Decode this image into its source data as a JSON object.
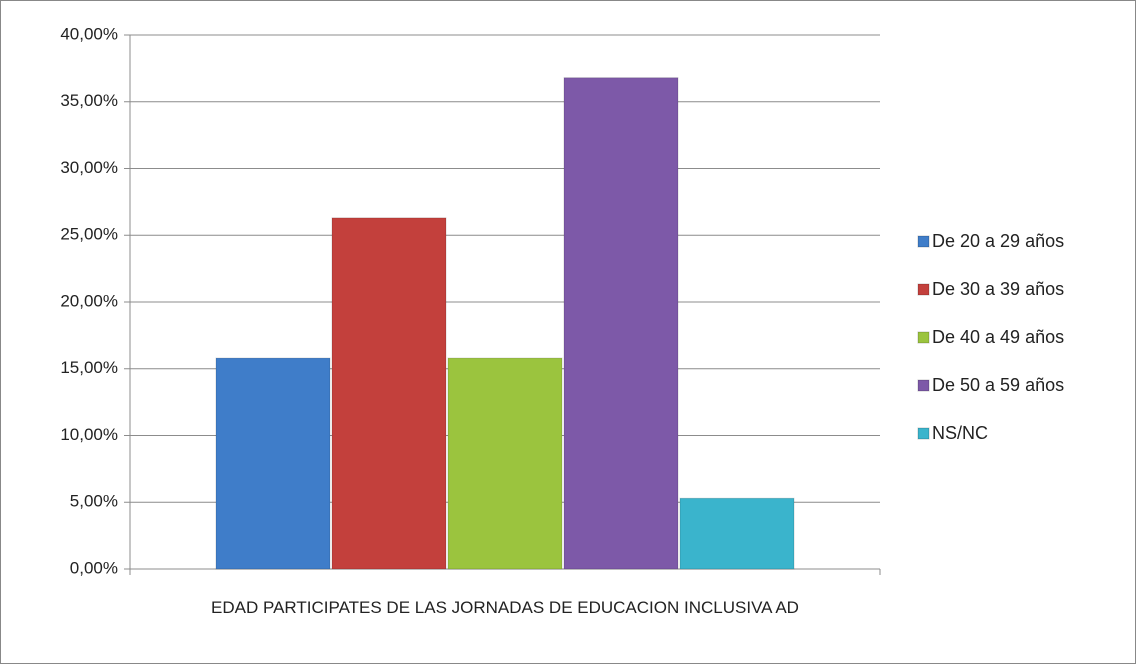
{
  "chart_data": {
    "type": "bar",
    "categories": [
      "EDAD PARTICIPATES DE LAS JORNADAS DE EDUCACION INCLUSIVA AD"
    ],
    "series": [
      {
        "name": "De 20 a 29 años",
        "color": "#3f7dc9",
        "values": [
          15.8
        ]
      },
      {
        "name": "De 30 a 39 años",
        "color": "#c3403c",
        "values": [
          26.3
        ]
      },
      {
        "name": "De 40 a 49 años",
        "color": "#9bc43e",
        "values": [
          15.8
        ]
      },
      {
        "name": "De 50 a 59 años",
        "color": "#7d59a8",
        "values": [
          36.8
        ]
      },
      {
        "name": "NS/NC",
        "color": "#3ab4cc",
        "values": [
          5.3
        ]
      }
    ],
    "ylim": [
      0,
      40
    ],
    "yticks": [
      {
        "value": 0,
        "label": "0,00%"
      },
      {
        "value": 5,
        "label": "5,00%"
      },
      {
        "value": 10,
        "label": "10,00%"
      },
      {
        "value": 15,
        "label": "15,00%"
      },
      {
        "value": 20,
        "label": "20,00%"
      },
      {
        "value": 25,
        "label": "25,00%"
      },
      {
        "value": 30,
        "label": "30,00%"
      },
      {
        "value": 35,
        "label": "35,00%"
      },
      {
        "value": 40,
        "label": "40,00%"
      }
    ],
    "grid": true,
    "legend": "right"
  }
}
